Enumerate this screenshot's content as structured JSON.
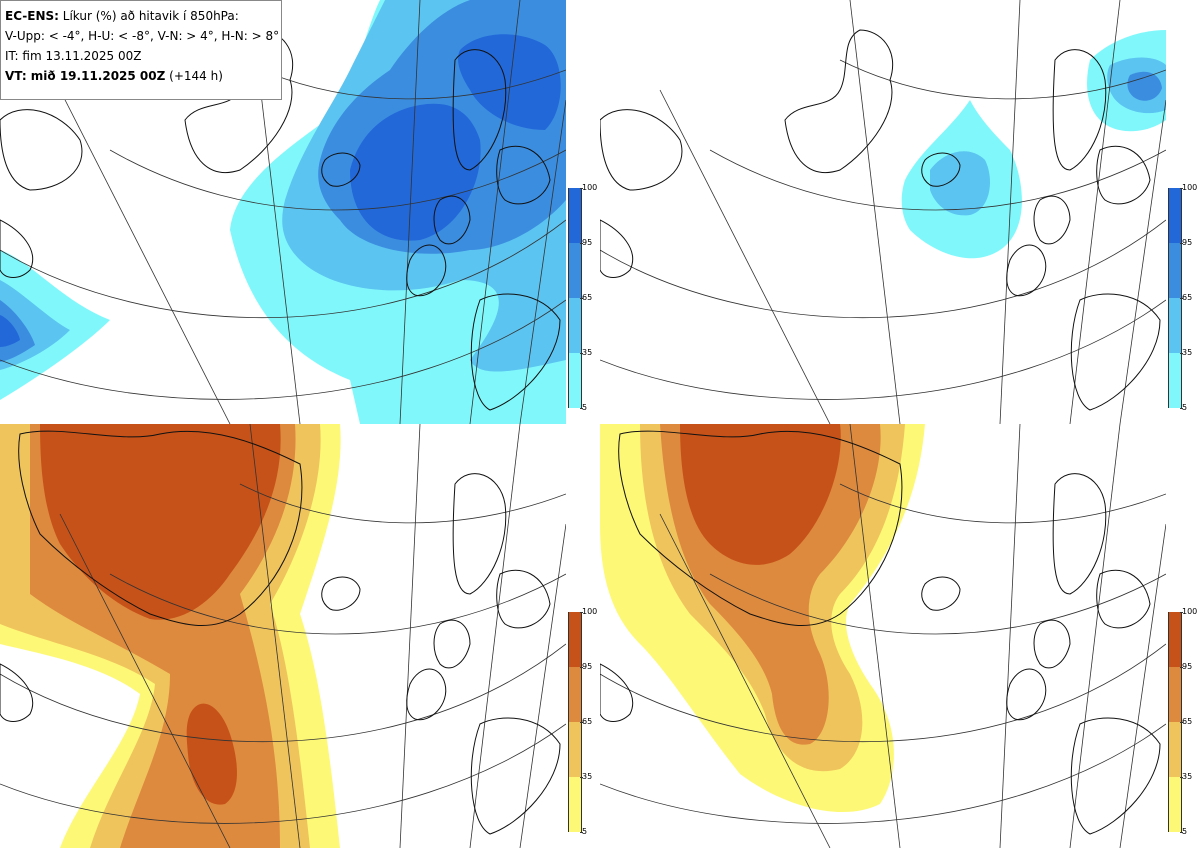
{
  "legend": {
    "model": "EC-ENS:",
    "title": "Líkur (%) að hitavik í 850hPa:",
    "thresholds": "V-Upp: < -4°, H-U: < -8°, V-N: > 4°, H-N: > 8°",
    "initial_time": "IT: fim 13.11.2025 00Z",
    "valid_label": "VT: mið 19.11.2025 00Z",
    "lead": "(+144 h)"
  },
  "colorbar_blue": {
    "ticks": [
      "100",
      "95",
      "65",
      "35",
      "5"
    ],
    "colors": [
      "#2268d8",
      "#3b8de0",
      "#5cc4f0",
      "#80f8fb"
    ]
  },
  "colorbar_orange": {
    "ticks": [
      "100",
      "95",
      "65",
      "35",
      "5"
    ],
    "colors": [
      "#c65219",
      "#dd8a3e",
      "#f0c45c",
      "#fdf977"
    ]
  },
  "panels": [
    {
      "name": "cold-4",
      "quantity": "probability anomaly < -4°"
    },
    {
      "name": "cold-8",
      "quantity": "probability anomaly < -8°"
    },
    {
      "name": "warm-4",
      "quantity": "probability anomaly > 4°"
    },
    {
      "name": "warm-8",
      "quantity": "probability anomaly > 8°"
    }
  ]
}
